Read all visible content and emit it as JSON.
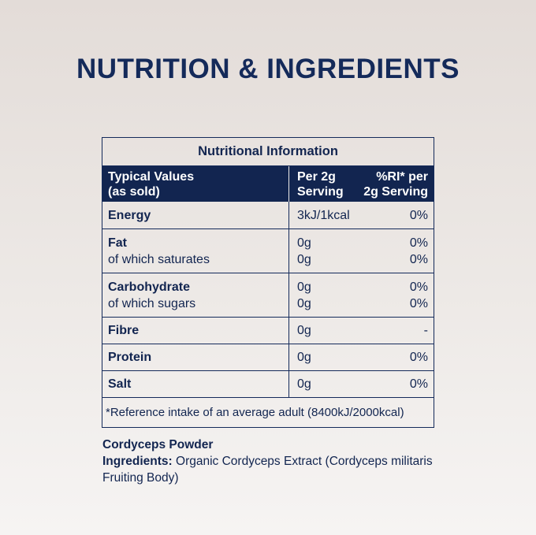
{
  "title": "NUTRITION & INGREDIENTS",
  "table": {
    "heading": "Nutritional Information",
    "columns": {
      "values_line1": "Typical Values",
      "values_line2": "(as sold)",
      "serving_line1": "Per 2g",
      "serving_line2": "Serving",
      "ri_line1": "%RI* per",
      "ri_line2": "2g Serving"
    },
    "rows": [
      {
        "label": "Energy",
        "serving": "3kJ/1kcal",
        "ri": "0%"
      },
      {
        "label": "Fat",
        "serving": "0g",
        "ri": "0%",
        "sub_label": "of which saturates",
        "sub_serving": "0g",
        "sub_ri": "0%"
      },
      {
        "label": "Carbohydrate",
        "serving": "0g",
        "ri": "0%",
        "sub_label": "of which sugars",
        "sub_serving": "0g",
        "sub_ri": "0%"
      },
      {
        "label": "Fibre",
        "serving": "0g",
        "ri": "-"
      },
      {
        "label": "Protein",
        "serving": "0g",
        "ri": "0%"
      },
      {
        "label": "Salt",
        "serving": "0g",
        "ri": "0%"
      }
    ],
    "footnote": "*Reference intake of an average adult (8400kJ/2000kcal)"
  },
  "product": {
    "name": "Cordyceps Powder",
    "ingredients_label": "Ingredients:",
    "ingredients_text": "Organic Cordyceps Extract (Cordyceps militaris Fruiting Body)"
  },
  "colors": {
    "navy": "#122550",
    "background_top": "#e3dcd8",
    "background_bottom": "#f6f4f3"
  }
}
